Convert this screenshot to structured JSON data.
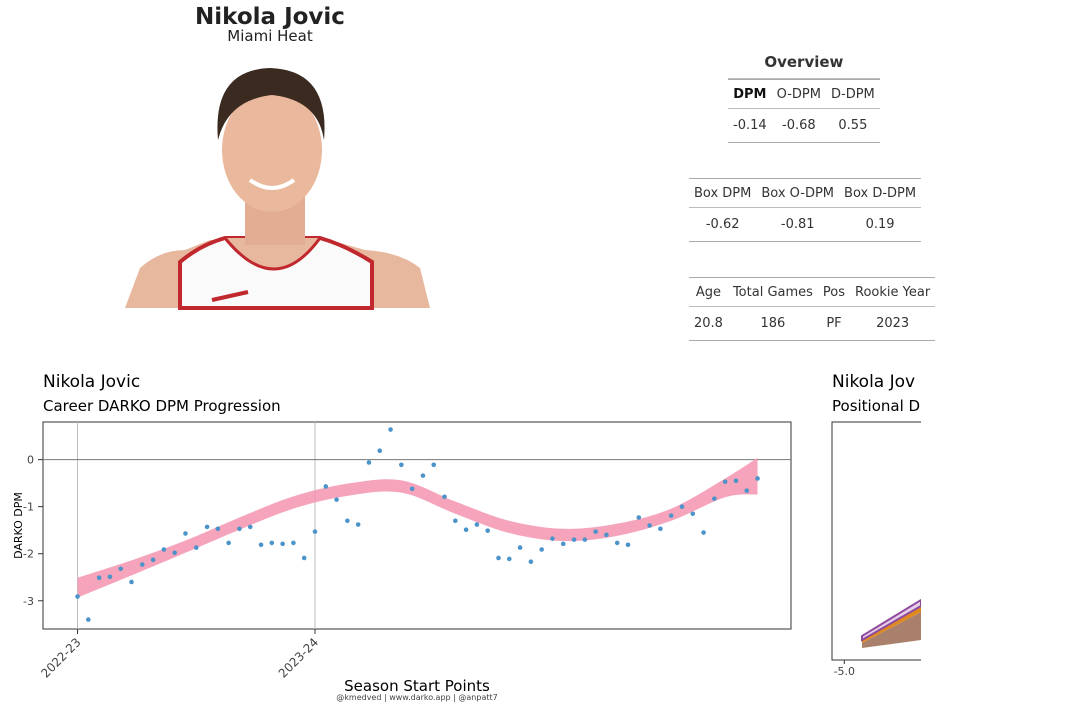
{
  "header": {
    "name": "Nikola Jovic",
    "team": "Miami Heat"
  },
  "tables": [
    {
      "title": "Overview",
      "columns": [
        "DPM",
        "O-DPM",
        "D-DPM"
      ],
      "rows": [
        [
          "-0.14",
          "-0.68",
          "0.55"
        ]
      ]
    },
    {
      "columns": [
        "Box DPM",
        "Box O-DPM",
        "Box D-DPM"
      ],
      "rows": [
        [
          "-0.62",
          "-0.81",
          "0.19"
        ]
      ]
    },
    {
      "columns": [
        "Age",
        "Total Games",
        "Pos",
        "Rookie Year"
      ],
      "rows": [
        [
          "20.8",
          "186",
          "PF",
          "2023"
        ]
      ]
    }
  ],
  "chart_data": [
    {
      "type": "scatter",
      "title": "Nikola Jovic",
      "subtitle": "Career DARKO DPM Progression",
      "x_label": "Season Start Points",
      "y_label": "DARKO DPM",
      "color": "#4b93c9",
      "x": [
        0,
        1,
        2,
        3,
        4,
        5,
        6,
        7,
        8,
        9,
        10,
        11,
        12,
        13,
        14,
        15,
        16,
        17,
        18,
        19,
        20,
        21,
        22,
        23,
        24,
        25,
        26,
        27,
        28,
        29,
        30,
        31,
        32,
        33,
        34,
        35,
        36,
        37,
        38,
        39,
        40,
        41,
        42,
        43,
        44,
        45,
        46,
        47,
        48,
        49,
        50,
        51,
        52,
        53,
        54,
        55,
        56,
        57,
        58,
        59,
        60,
        61,
        62,
        63
      ],
      "values": [
        -2.91,
        -3.4,
        -2.51,
        -2.49,
        -2.32,
        -2.6,
        -2.23,
        -2.13,
        -1.91,
        -1.98,
        -1.57,
        -1.87,
        -1.43,
        -1.47,
        -1.77,
        -1.47,
        -1.43,
        -1.81,
        -1.77,
        -1.79,
        -1.77,
        -2.09,
        -1.53,
        -0.57,
        -0.85,
        -1.3,
        -1.38,
        -0.06,
        0.19,
        0.64,
        -0.11,
        -0.62,
        -0.34,
        -0.11,
        -0.79,
        -1.3,
        -1.49,
        -1.38,
        -1.51,
        -2.09,
        -2.11,
        -1.87,
        -2.17,
        -1.91,
        -1.68,
        -1.79,
        -1.7,
        -1.7,
        -1.53,
        -1.6,
        -1.77,
        -1.81,
        -1.23,
        -1.4,
        -1.47,
        -1.19,
        -1.0,
        -1.15,
        -1.55,
        -0.83,
        -0.47,
        -0.45,
        -0.66,
        -0.4
      ],
      "band": {
        "color": "#f59ab5",
        "x": [
          0,
          5,
          10,
          15,
          20,
          25,
          30,
          35,
          40,
          45,
          50,
          55,
          60,
          63
        ],
        "upper": [
          -2.51,
          -2.14,
          -1.72,
          -1.23,
          -0.78,
          -0.51,
          -0.44,
          -0.89,
          -1.3,
          -1.47,
          -1.36,
          -1.04,
          -0.4,
          0.04
        ],
        "lower": [
          -2.93,
          -2.46,
          -1.98,
          -1.49,
          -1.04,
          -0.77,
          -0.7,
          -1.15,
          -1.56,
          -1.73,
          -1.62,
          -1.3,
          -0.8,
          -0.74
        ]
      },
      "hline": 0,
      "xlim": [
        -3.2,
        66.1
      ],
      "ylim": [
        -3.6,
        0.8
      ],
      "xticks": [
        {
          "value": 0,
          "label": "2022-23"
        },
        {
          "value": 22,
          "label": "2023-24"
        }
      ],
      "yticks": [
        0,
        -1,
        -2,
        -3
      ]
    },
    {
      "type": "area",
      "title": "Nikola Jov",
      "subtitle": "Positional D",
      "xlim": [
        -5.6,
        5.6
      ],
      "xticks": [
        {
          "value": -5,
          "label": "-5.0"
        }
      ]
    }
  ],
  "credit": "@kmedved | www.darko.app | @anpatt7"
}
